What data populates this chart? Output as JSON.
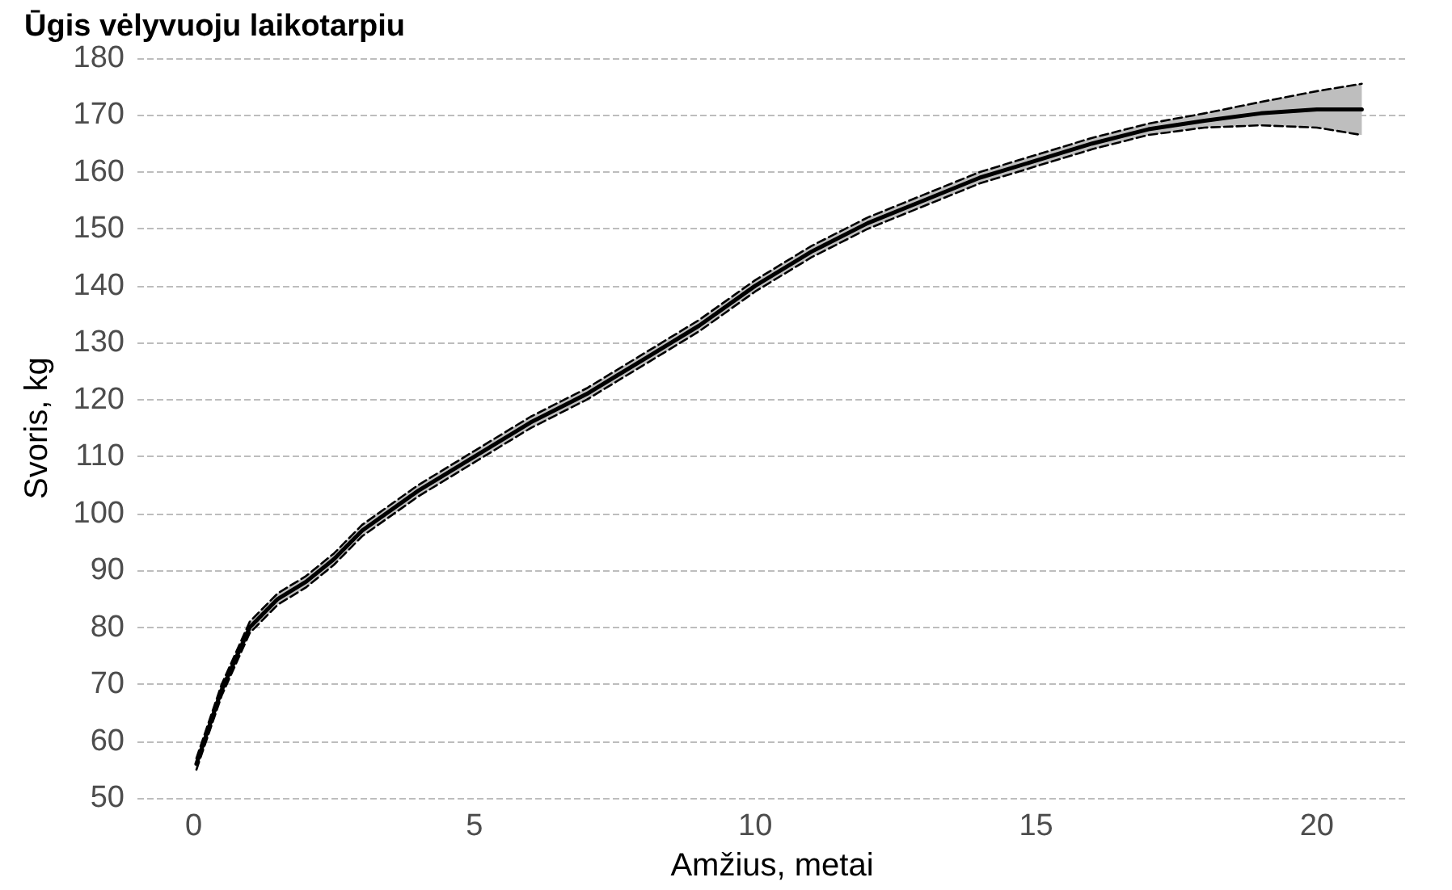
{
  "chart_data": {
    "type": "line",
    "title": "Ūgis vėlyvuoju laikotarpiu",
    "xlabel": "Amžius, metai",
    "ylabel": "Svoris, kg",
    "x": [
      0.05,
      0.5,
      1,
      1.5,
      2,
      2.5,
      3,
      4,
      5,
      6,
      7,
      8,
      9,
      10,
      11,
      12,
      13,
      14,
      15,
      16,
      17,
      18,
      19,
      20,
      20.8
    ],
    "series": [
      {
        "color": "#000000",
        "line_style": "solid",
        "values": [
          56,
          69,
          80,
          85,
          88,
          92,
          97,
          104,
          110,
          116,
          121,
          127,
          133,
          140,
          146,
          151,
          155,
          159,
          162,
          165,
          167.5,
          169,
          170.3,
          171,
          171
        ],
        "lower": [
          55,
          68,
          79,
          84,
          87,
          91,
          96,
          103,
          109,
          115,
          120,
          126,
          132,
          139,
          145,
          150,
          154,
          158,
          161,
          164,
          166.5,
          167.8,
          168.2,
          167.8,
          166.5
        ],
        "upper": [
          57,
          70,
          81,
          86,
          89,
          93,
          98,
          105,
          111,
          117,
          122,
          128,
          134,
          141,
          147,
          152,
          156,
          160,
          163,
          166,
          168.5,
          170.3,
          172.3,
          174.2,
          175.5
        ]
      },
      {
        "color": "#000000",
        "line_style": "dashed",
        "values": [
          55,
          68,
          79,
          84,
          87,
          91,
          96,
          103,
          109,
          115,
          120,
          126,
          132,
          139,
          145,
          150,
          154,
          158,
          161,
          164,
          166.5,
          167.8,
          168.2,
          167.8,
          166.5
        ]
      },
      {
        "color": "#000000",
        "line_style": "dashed",
        "values": [
          57,
          70,
          81,
          86,
          89,
          93,
          98,
          105,
          111,
          117,
          122,
          128,
          134,
          141,
          147,
          152,
          156,
          160,
          163,
          166,
          168.5,
          170.3,
          172.3,
          174.2,
          175.5
        ]
      }
    ],
    "xlim": [
      -1,
      21.6
    ],
    "xticks": [
      0,
      5,
      10,
      15,
      20
    ],
    "ylim": [
      50,
      180
    ],
    "yticks": [
      50,
      60,
      70,
      80,
      90,
      100,
      110,
      120,
      130,
      140,
      150,
      160,
      170,
      180
    ],
    "grid": "y",
    "marker": "none"
  }
}
